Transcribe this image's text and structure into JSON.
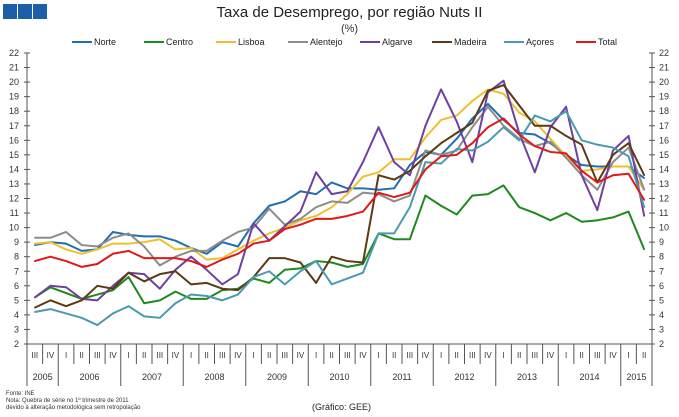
{
  "title": "Taxa de Desemprego, por região Nuts II",
  "subtitle": "(%)",
  "footnotes": [
    "Fonte: INE",
    "Nota: Quebra de série no 1º trimestre de 2011",
    "devido à alteração metodológica sem retropolação"
  ],
  "credit": "(Gráfico: GEE)",
  "chart_data": {
    "type": "line",
    "title": "Taxa de Desemprego, por região Nuts II",
    "ylabel": "(%)",
    "ylim": [
      2,
      22
    ],
    "yticks": [
      2,
      3,
      4,
      5,
      6,
      7,
      8,
      9,
      10,
      11,
      12,
      13,
      14,
      15,
      16,
      17,
      18,
      19,
      20,
      21,
      22
    ],
    "legend_position": "top",
    "quarters": [
      "III",
      "IV",
      "I",
      "II",
      "III",
      "IV",
      "I",
      "II",
      "III",
      "IV",
      "I",
      "II",
      "III",
      "IV",
      "I",
      "II",
      "III",
      "IV",
      "I",
      "II",
      "III",
      "IV",
      "I",
      "II",
      "III",
      "IV",
      "I",
      "II",
      "III",
      "IV",
      "I",
      "II",
      "III",
      "IV",
      "I",
      "II",
      "III",
      "IV",
      "I",
      "II"
    ],
    "years": [
      {
        "label": "2005",
        "quarters": 2
      },
      {
        "label": "2006",
        "quarters": 4
      },
      {
        "label": "2007",
        "quarters": 4
      },
      {
        "label": "2008",
        "quarters": 4
      },
      {
        "label": "2009",
        "quarters": 4
      },
      {
        "label": "2010",
        "quarters": 4
      },
      {
        "label": "2011",
        "quarters": 4
      },
      {
        "label": "2012",
        "quarters": 4
      },
      {
        "label": "2013",
        "quarters": 4
      },
      {
        "label": "2014",
        "quarters": 4
      },
      {
        "label": "2015",
        "quarters": 2
      }
    ],
    "series": [
      {
        "name": "Norte",
        "color": "#1f6fb5",
        "values": [
          8.8,
          9.0,
          8.9,
          8.4,
          8.5,
          9.7,
          9.5,
          9.4,
          9.4,
          9.1,
          8.6,
          8.2,
          9.0,
          8.7,
          10.3,
          11.5,
          11.8,
          12.5,
          12.3,
          13.1,
          12.7,
          12.7,
          12.6,
          12.7,
          14.3,
          15.2,
          15.0,
          16.1,
          17.5,
          18.5,
          17.4,
          16.5,
          16.4,
          15.8,
          15.0,
          14.3,
          14.2,
          14.2,
          14.2,
          13.4
        ]
      },
      {
        "name": "Centro",
        "color": "#1e8a1e",
        "values": [
          5.2,
          5.9,
          5.5,
          5.1,
          5.4,
          5.7,
          6.6,
          4.8,
          5.0,
          5.6,
          5.1,
          5.1,
          5.7,
          5.8,
          6.5,
          6.2,
          7.1,
          7.2,
          7.7,
          7.6,
          7.3,
          7.5,
          9.6,
          9.2,
          9.2,
          12.2,
          11.5,
          10.9,
          12.2,
          12.3,
          12.9,
          11.4,
          11.0,
          10.5,
          11.0,
          10.4,
          10.5,
          10.7,
          11.1,
          8.5
        ]
      },
      {
        "name": "Lisboa",
        "color": "#eec030",
        "values": [
          8.9,
          9.0,
          8.5,
          8.2,
          8.5,
          8.9,
          8.9,
          9.0,
          9.2,
          8.5,
          8.6,
          7.8,
          7.9,
          8.5,
          9.1,
          9.6,
          10.0,
          10.5,
          10.8,
          11.4,
          12.3,
          13.5,
          13.8,
          14.7,
          14.7,
          16.2,
          17.4,
          17.7,
          18.7,
          19.5,
          19.2,
          17.9,
          17.3,
          16.1,
          14.9,
          13.9,
          14.0,
          14.2,
          14.2,
          12.6
        ]
      },
      {
        "name": "Alentejo",
        "color": "#8c8c8c",
        "values": [
          9.3,
          9.3,
          9.7,
          8.8,
          8.7,
          9.3,
          9.6,
          8.7,
          7.4,
          8.0,
          8.4,
          8.4,
          9.1,
          9.7,
          10.0,
          11.3,
          10.2,
          10.6,
          11.4,
          11.8,
          11.7,
          12.4,
          12.3,
          11.8,
          12.2,
          15.3,
          15.0,
          15.3,
          16.9,
          18.3,
          17.0,
          16.1,
          15.6,
          15.9,
          14.8,
          13.6,
          12.6,
          14.5,
          15.5,
          12.6
        ]
      },
      {
        "name": "Algarve",
        "color": "#7040a0",
        "values": [
          5.2,
          6.0,
          5.9,
          5.1,
          5.0,
          6.0,
          6.9,
          6.8,
          5.8,
          7.1,
          8.0,
          7.1,
          6.1,
          6.8,
          10.3,
          9.1,
          10.1,
          11.1,
          13.8,
          12.3,
          12.5,
          14.5,
          16.9,
          14.5,
          13.6,
          17.0,
          19.5,
          17.3,
          14.5,
          19.3,
          20.1,
          16.5,
          13.8,
          16.9,
          18.3,
          13.6,
          11.2,
          15.3,
          16.3,
          10.8
        ]
      },
      {
        "name": "Madeira",
        "color": "#5c3a14",
        "values": [
          4.5,
          5.0,
          4.6,
          5.0,
          6.0,
          5.8,
          6.9,
          6.3,
          6.8,
          7.0,
          6.1,
          6.2,
          5.8,
          5.7,
          6.6,
          7.9,
          7.9,
          7.6,
          6.2,
          8.0,
          7.7,
          7.6,
          13.6,
          13.3,
          13.9,
          14.9,
          15.8,
          16.5,
          17.2,
          19.4,
          19.8,
          18.4,
          17.0,
          17.0,
          16.3,
          15.7,
          13.1,
          15.0,
          15.8,
          13.6
        ]
      },
      {
        "name": "Açores",
        "color": "#4a9ab0",
        "values": [
          4.2,
          4.4,
          4.1,
          3.8,
          3.3,
          4.1,
          4.6,
          3.9,
          3.8,
          4.8,
          5.4,
          5.3,
          5.0,
          5.4,
          6.6,
          7.0,
          6.1,
          7.0,
          7.7,
          6.1,
          6.5,
          6.9,
          9.6,
          9.6,
          11.4,
          14.5,
          14.4,
          15.4,
          15.3,
          15.9,
          16.9,
          16.0,
          17.7,
          17.3,
          18.0,
          16.0,
          15.7,
          15.5,
          14.9,
          11.4
        ]
      },
      {
        "name": "Total",
        "color": "#e01818",
        "values": [
          7.7,
          8.0,
          7.7,
          7.3,
          7.5,
          8.2,
          8.4,
          7.9,
          7.9,
          7.9,
          7.7,
          7.3,
          7.8,
          8.2,
          8.9,
          9.1,
          9.9,
          10.2,
          10.6,
          10.6,
          10.8,
          11.1,
          12.4,
          12.1,
          12.4,
          14.0,
          14.9,
          15.0,
          15.8,
          16.9,
          17.5,
          16.4,
          15.6,
          15.2,
          15.1,
          13.9,
          13.1,
          13.6,
          13.7,
          11.9
        ]
      }
    ]
  }
}
